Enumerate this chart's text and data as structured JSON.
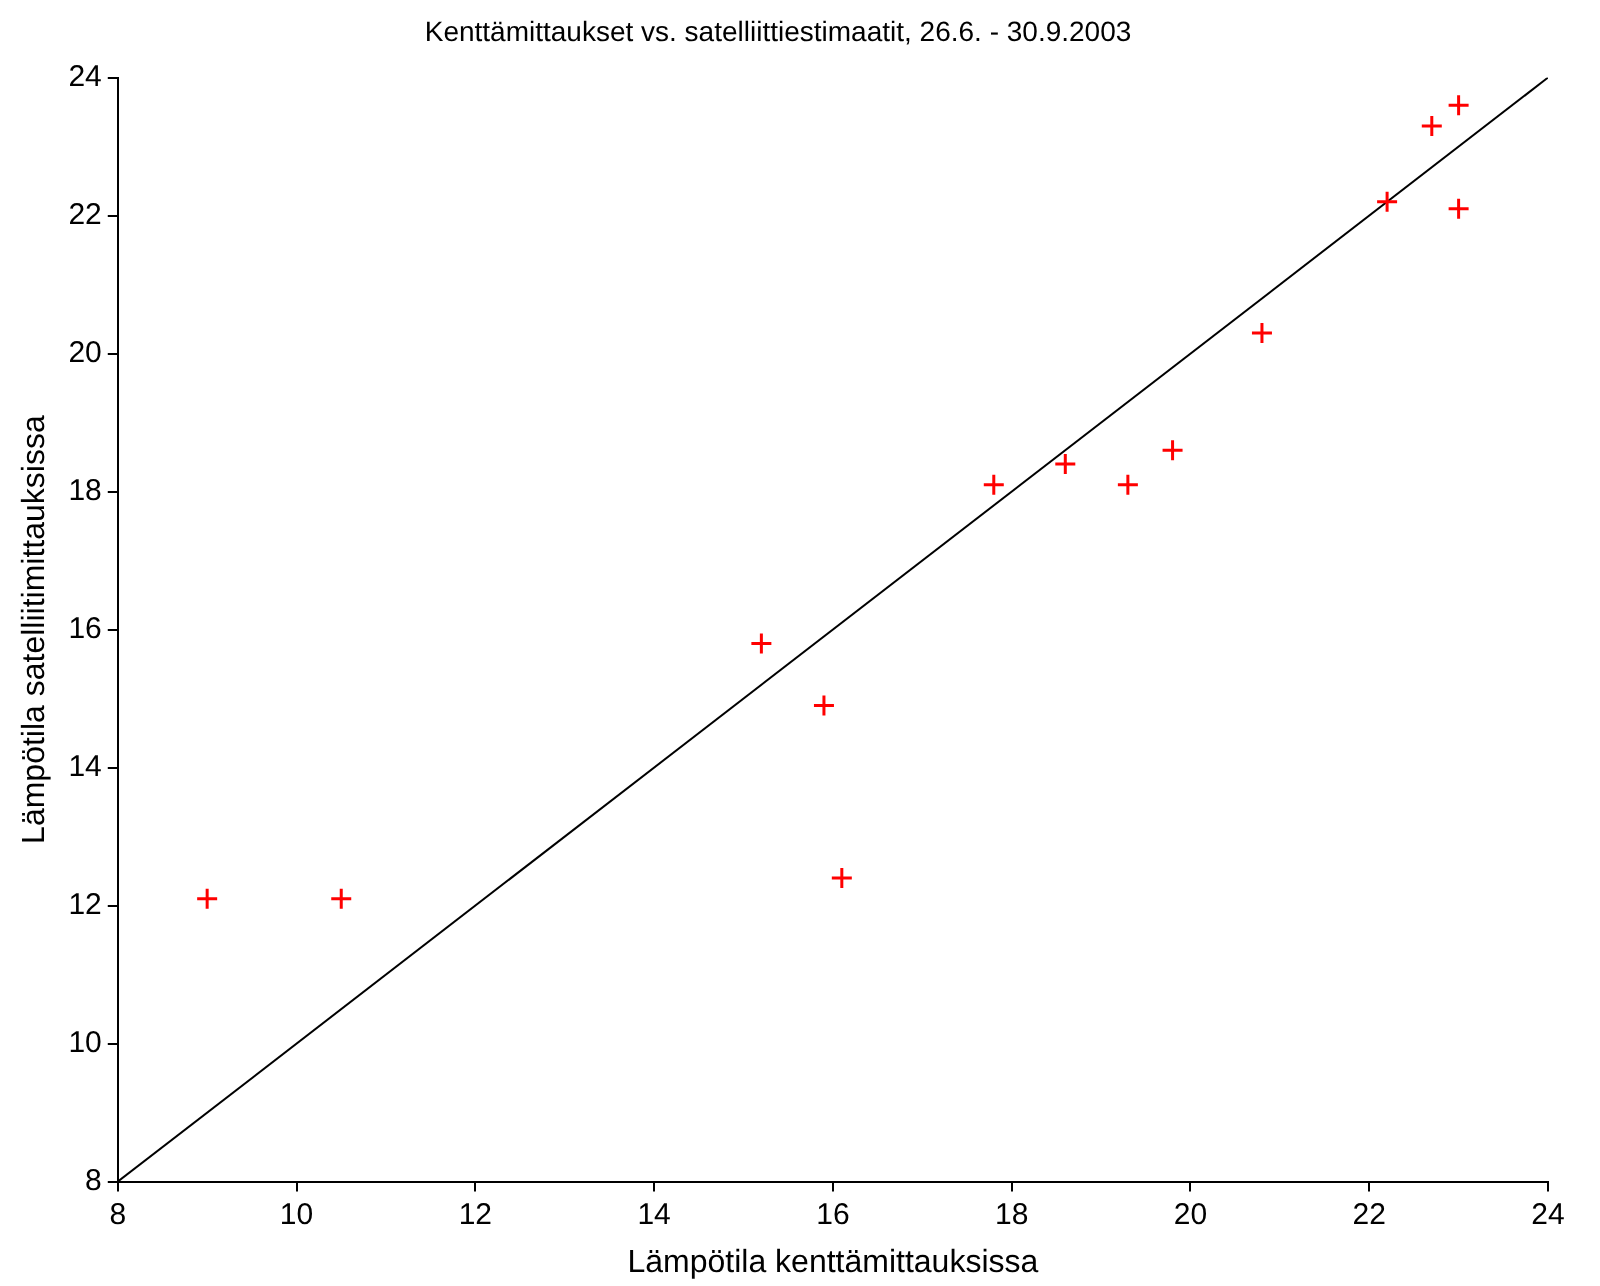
{
  "chart_data": {
    "type": "scatter",
    "title": "Kenttämittaukset vs. satelliittiestimaatit, 26.6. - 30.9.2003",
    "xlabel": "Lämpötila kenttämittauksissa",
    "ylabel": "Lämpötila satelliitimittauksissa",
    "xlim": [
      8,
      24
    ],
    "xticks": [
      8,
      10,
      12,
      14,
      16,
      18,
      20,
      22,
      24
    ],
    "ylim": [
      8,
      24
    ],
    "yticks": [
      8,
      10,
      12,
      14,
      16,
      18,
      20,
      22,
      24
    ],
    "grid": false,
    "legend": false,
    "series": [
      {
        "type": "scatter",
        "color": "#ff0000",
        "marker": "cross",
        "x": [
          9.0,
          10.5,
          15.2,
          15.9,
          16.1,
          17.8,
          18.6,
          19.3,
          19.8,
          20.8,
          22.2,
          22.7,
          23.0,
          23.0
        ],
        "values": [
          12.1,
          12.1,
          15.8,
          14.9,
          12.4,
          18.1,
          18.4,
          18.1,
          18.6,
          20.3,
          22.2,
          23.3,
          23.6,
          22.1
        ]
      },
      {
        "type": "line",
        "color": "#000000",
        "marker": "none",
        "line_style": "solid",
        "x": [
          8,
          24
        ],
        "values": [
          8,
          24
        ]
      }
    ]
  }
}
